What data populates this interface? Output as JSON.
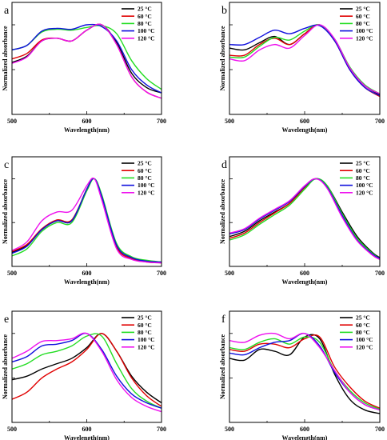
{
  "figure": {
    "series_names": [
      "25 °C",
      "60 °C",
      "80 °C",
      "100 °C",
      "120 °C"
    ],
    "series_colors": [
      "#000000",
      "#e00000",
      "#22dd22",
      "#1010dd",
      "#ee10ee"
    ],
    "xlabel": "Wavelength(nm)",
    "ylabel": "Normalized absorbance",
    "x_ticks": [
      "500",
      "600",
      "700"
    ]
  },
  "chart_data": [
    {
      "panel": "a",
      "type": "line",
      "xlabel": "Wavelength(nm)",
      "ylabel": "Normalized absorbance",
      "xlim": [
        500,
        700
      ],
      "ylim": [
        0,
        1.25
      ],
      "legend": "top-right",
      "x": [
        500,
        520,
        540,
        560,
        580,
        600,
        620,
        640,
        660,
        680,
        700
      ],
      "series": [
        {
          "name": "25 °C",
          "values": [
            0.58,
            0.65,
            0.82,
            0.85,
            0.82,
            0.94,
            1.0,
            0.8,
            0.46,
            0.3,
            0.24
          ]
        },
        {
          "name": "60 °C",
          "values": [
            0.62,
            0.68,
            0.83,
            0.85,
            0.82,
            0.94,
            1.0,
            0.78,
            0.42,
            0.25,
            0.18
          ]
        },
        {
          "name": "80 °C",
          "values": [
            0.72,
            0.77,
            0.92,
            0.95,
            0.94,
            0.97,
            0.99,
            0.9,
            0.6,
            0.4,
            0.28
          ]
        },
        {
          "name": "100 °C",
          "values": [
            0.72,
            0.77,
            0.93,
            0.96,
            0.95,
            1.0,
            0.98,
            0.82,
            0.5,
            0.33,
            0.24
          ]
        },
        {
          "name": "120 °C",
          "values": [
            0.57,
            0.64,
            0.82,
            0.85,
            0.82,
            0.94,
            1.0,
            0.78,
            0.42,
            0.25,
            0.18
          ]
        }
      ]
    },
    {
      "panel": "b",
      "type": "line",
      "xlabel": "Wavelength(nm)",
      "ylabel": "Normalized absorbance",
      "xlim": [
        500,
        700
      ],
      "ylim": [
        0,
        1.25
      ],
      "legend": "top-right",
      "x": [
        500,
        520,
        540,
        560,
        580,
        600,
        620,
        640,
        660,
        680,
        700
      ],
      "series": [
        {
          "name": "25 °C",
          "values": [
            0.74,
            0.72,
            0.8,
            0.87,
            0.78,
            0.9,
            1.0,
            0.82,
            0.52,
            0.32,
            0.22
          ]
        },
        {
          "name": "60 °C",
          "values": [
            0.66,
            0.66,
            0.78,
            0.85,
            0.78,
            0.9,
            1.0,
            0.82,
            0.5,
            0.3,
            0.2
          ]
        },
        {
          "name": "80 °C",
          "values": [
            0.64,
            0.64,
            0.76,
            0.86,
            0.83,
            0.93,
            1.0,
            0.84,
            0.53,
            0.33,
            0.23
          ]
        },
        {
          "name": "100 °C",
          "values": [
            0.78,
            0.78,
            0.86,
            0.94,
            0.9,
            0.96,
            0.99,
            0.82,
            0.5,
            0.3,
            0.21
          ]
        },
        {
          "name": "120 °C",
          "values": [
            0.62,
            0.6,
            0.72,
            0.78,
            0.74,
            0.88,
            1.0,
            0.84,
            0.52,
            0.32,
            0.23
          ]
        }
      ]
    },
    {
      "panel": "c",
      "type": "line",
      "xlabel": "Wavelength(nm)",
      "ylabel": "Normalized absorbance",
      "xlim": [
        500,
        700
      ],
      "ylim": [
        0,
        1.25
      ],
      "legend": "top-right",
      "x": [
        500,
        520,
        540,
        560,
        580,
        600,
        610,
        620,
        640,
        660,
        680,
        700
      ],
      "series": [
        {
          "name": "25 °C",
          "values": [
            0.16,
            0.24,
            0.42,
            0.52,
            0.52,
            0.88,
            1.0,
            0.8,
            0.24,
            0.1,
            0.06,
            0.05
          ]
        },
        {
          "name": "60 °C",
          "values": [
            0.17,
            0.25,
            0.43,
            0.53,
            0.53,
            0.88,
            1.0,
            0.78,
            0.22,
            0.09,
            0.05,
            0.04
          ]
        },
        {
          "name": "80 °C",
          "values": [
            0.12,
            0.2,
            0.4,
            0.5,
            0.5,
            0.86,
            1.0,
            0.82,
            0.26,
            0.11,
            0.07,
            0.05
          ]
        },
        {
          "name": "100 °C",
          "values": [
            0.15,
            0.23,
            0.42,
            0.52,
            0.52,
            0.88,
            1.0,
            0.8,
            0.24,
            0.1,
            0.06,
            0.05
          ]
        },
        {
          "name": "120 °C",
          "values": [
            0.18,
            0.28,
            0.52,
            0.62,
            0.64,
            0.92,
            1.0,
            0.76,
            0.2,
            0.08,
            0.05,
            0.04
          ]
        }
      ]
    },
    {
      "panel": "d",
      "type": "line",
      "xlabel": "Wavelength(nm)",
      "ylabel": "Normalized absorbance",
      "xlim": [
        500,
        700
      ],
      "ylim": [
        0,
        1.25
      ],
      "legend": "top-right",
      "x": [
        500,
        520,
        540,
        560,
        580,
        600,
        615,
        630,
        650,
        670,
        690,
        700
      ],
      "series": [
        {
          "name": "25 °C",
          "values": [
            0.34,
            0.4,
            0.52,
            0.62,
            0.72,
            0.9,
            1.0,
            0.92,
            0.62,
            0.34,
            0.16,
            0.1
          ]
        },
        {
          "name": "60 °C",
          "values": [
            0.32,
            0.38,
            0.5,
            0.61,
            0.72,
            0.9,
            1.0,
            0.9,
            0.58,
            0.3,
            0.13,
            0.08
          ]
        },
        {
          "name": "80 °C",
          "values": [
            0.3,
            0.36,
            0.48,
            0.59,
            0.7,
            0.88,
            1.0,
            0.92,
            0.6,
            0.32,
            0.15,
            0.09
          ]
        },
        {
          "name": "100 °C",
          "values": [
            0.37,
            0.42,
            0.54,
            0.64,
            0.74,
            0.91,
            1.0,
            0.9,
            0.58,
            0.3,
            0.14,
            0.09
          ]
        },
        {
          "name": "120 °C",
          "values": [
            0.38,
            0.43,
            0.55,
            0.65,
            0.75,
            0.92,
            1.0,
            0.89,
            0.56,
            0.29,
            0.13,
            0.08
          ]
        }
      ]
    },
    {
      "panel": "e",
      "type": "line",
      "xlabel": "Wavelength(nm)",
      "ylabel": "Normalized absorbance",
      "xlim": [
        500,
        700
      ],
      "ylim": [
        0,
        1.25
      ],
      "legend": "top-right",
      "x": [
        500,
        520,
        540,
        560,
        580,
        600,
        620,
        640,
        660,
        680,
        700
      ],
      "series": [
        {
          "name": "25 °C",
          "values": [
            0.48,
            0.52,
            0.6,
            0.66,
            0.72,
            0.84,
            1.0,
            0.8,
            0.52,
            0.34,
            0.22
          ]
        },
        {
          "name": "60 °C",
          "values": [
            0.26,
            0.34,
            0.5,
            0.6,
            0.68,
            0.82,
            1.0,
            0.8,
            0.5,
            0.3,
            0.18
          ]
        },
        {
          "name": "80 °C",
          "values": [
            0.6,
            0.66,
            0.76,
            0.8,
            0.86,
            0.97,
            0.97,
            0.66,
            0.38,
            0.24,
            0.16
          ]
        },
        {
          "name": "100 °C",
          "values": [
            0.68,
            0.74,
            0.86,
            0.88,
            0.92,
            1.0,
            0.82,
            0.52,
            0.32,
            0.22,
            0.16
          ]
        },
        {
          "name": "120 °C",
          "values": [
            0.72,
            0.8,
            0.91,
            0.92,
            0.94,
            1.0,
            0.8,
            0.48,
            0.28,
            0.18,
            0.12
          ]
        }
      ]
    },
    {
      "panel": "f",
      "type": "line",
      "xlabel": "Wavelength(nm)",
      "ylabel": "Normalized absorbance",
      "xlim": [
        500,
        700
      ],
      "ylim": [
        0,
        1.25
      ],
      "legend": "top-right",
      "x": [
        500,
        520,
        540,
        560,
        580,
        600,
        620,
        640,
        660,
        680,
        700
      ],
      "series": [
        {
          "name": "25 °C",
          "values": [
            0.72,
            0.7,
            0.82,
            0.8,
            0.76,
            0.96,
            0.94,
            0.54,
            0.26,
            0.14,
            0.1
          ]
        },
        {
          "name": "60 °C",
          "values": [
            0.82,
            0.8,
            0.88,
            0.88,
            0.84,
            0.94,
            0.96,
            0.62,
            0.4,
            0.24,
            0.16
          ]
        },
        {
          "name": "80 °C",
          "values": [
            0.84,
            0.82,
            0.9,
            0.94,
            0.88,
            0.96,
            0.9,
            0.58,
            0.36,
            0.22,
            0.15
          ]
        },
        {
          "name": "100 °C",
          "values": [
            0.78,
            0.76,
            0.84,
            0.9,
            0.92,
            1.0,
            0.86,
            0.56,
            0.34,
            0.2,
            0.14
          ]
        },
        {
          "name": "120 °C",
          "values": [
            0.92,
            0.9,
            0.98,
            1.0,
            0.94,
            1.0,
            0.84,
            0.58,
            0.34,
            0.2,
            0.14
          ]
        }
      ]
    }
  ]
}
